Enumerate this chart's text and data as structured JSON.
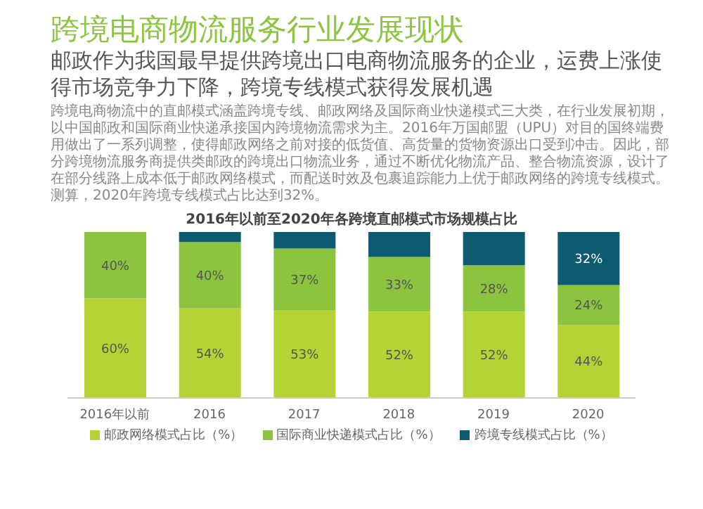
{
  "chart_data": {
    "type": "bar",
    "stacked": true,
    "title": "跨境电商物流服务行业发展现状",
    "subtitle": "邮政作为我国最早提供跨境出口电商物流服务的企业，运费上涨使得市场竞争力下降，跨境专线模式获得发展机遇",
    "annotations": [
      "跨境电商物流中的直邮模式涵盖跨境专线、邮政网络及国际商业快递模式三大类，在行业发展初期，以中国邮政和国际商业快递承接国内跨境物流需求为主。2016年万国邮盟（UPU）对目的国终端费用做出了一系列调整，使得邮政网络之前对接的低货值、高货量的货物资源出口受到冲击。因此，部分跨境物流服务商提供类邮政的跨境出口物流业务，通过不断优化物流产品、整合物流资源，设计了在部分线路上成本低于邮政网络模式，而配送时效及包裹追踪能力上优于邮政网络的跨境专线模式。测算，2020年跨境专线模式占比达到32%。",
      "2016年以前至2020年各跨境直邮模式市场规模占比"
    ],
    "categories": [
      "2016年以前",
      "2016",
      "2017",
      "2018",
      "2019",
      "2020"
    ],
    "ylim": [
      0,
      100
    ],
    "series": [
      {
        "name": "邮政网络模式占比（%）",
        "color": "#b5d334",
        "values": [
          60,
          54,
          53,
          52,
          52,
          44
        ],
        "value_labels": [
          "60%",
          "54%",
          "53%",
          "52%",
          "52%",
          "44%"
        ]
      },
      {
        "name": "国际商业快递模式占比（%）",
        "color": "#8cc43f",
        "values": [
          40,
          40,
          37,
          33,
          28,
          24
        ],
        "value_labels": [
          "40%",
          "40%",
          "37%",
          "33%",
          "28%",
          "24%"
        ]
      },
      {
        "name": "跨境专线模式占比（%）",
        "color": "#0e5a70",
        "values": [
          0,
          6,
          10,
          15,
          20,
          32
        ],
        "value_labels": [
          null,
          null,
          null,
          null,
          null,
          "32%"
        ]
      }
    ],
    "legend": "bottom",
    "grid": false,
    "tick_labels": "x"
  }
}
